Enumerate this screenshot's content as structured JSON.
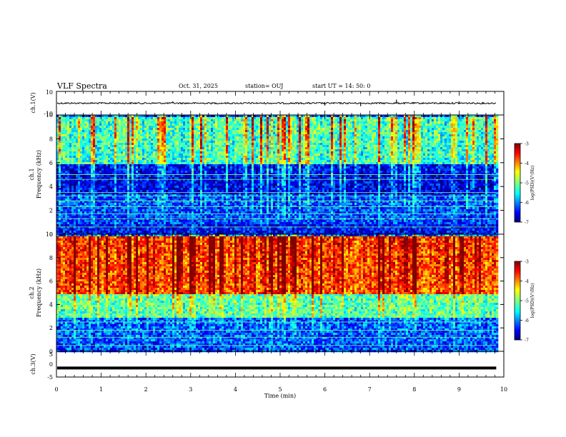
{
  "header": {
    "title": "VLF Spectra",
    "date": "Oct. 31, 2025",
    "station": "station= OUJ",
    "start": "start  UT =   14: 50: 0"
  },
  "colorbar": {
    "label": "log(PSD)(V²/Hz)",
    "ticks": [
      -3,
      -4,
      -5,
      -6,
      -7
    ],
    "range": [
      -7,
      -3
    ]
  },
  "chart_data": [
    {
      "type": "line",
      "id": "ch1-waveform",
      "ylabel": "ch.1(V)",
      "ylim": [
        -10,
        10
      ],
      "yticks": [
        10,
        -10
      ],
      "x_range_min": [
        0,
        9.83
      ],
      "baseline_value": 0,
      "spike_times_min": [
        2.6,
        6.0,
        6.8,
        7.6,
        9.0
      ],
      "spike_values": [
        1.5,
        -2.0,
        -2.5,
        3.0,
        1.5
      ]
    },
    {
      "type": "heatmap",
      "id": "ch1-spectrogram",
      "ylabel_top": "ch.1",
      "ylabel": "Frequency (kHz)",
      "ylim": [
        0,
        10
      ],
      "yticks": [
        0,
        2,
        4,
        6,
        8,
        10
      ],
      "x_range_min": [
        0,
        9.83
      ],
      "colorscale": "jet",
      "zlim": [
        -7,
        -3
      ],
      "band_levels": [
        {
          "freq_khz": [
            0,
            1.0
          ],
          "level": -6.5
        },
        {
          "freq_khz": [
            1.0,
            3.5
          ],
          "level": -6.3
        },
        {
          "freq_khz": [
            3.5,
            6.0
          ],
          "level": -6.7
        },
        {
          "freq_khz": [
            6.0,
            10.0
          ],
          "level": -5.5
        }
      ],
      "tone_lines_khz": [
        0.6,
        1.3,
        1.7,
        2.3,
        2.8,
        3.2,
        3.5,
        4.6,
        5.0
      ]
    },
    {
      "type": "heatmap",
      "id": "ch2-spectrogram",
      "ylabel_top": "ch.2",
      "ylabel": "Frequency (kHz)",
      "ylim": [
        0,
        10
      ],
      "yticks": [
        0,
        2,
        4,
        6,
        8,
        10
      ],
      "x_range_min": [
        0,
        9.83
      ],
      "colorscale": "jet",
      "zlim": [
        -7,
        -3
      ],
      "band_levels": [
        {
          "freq_khz": [
            0,
            3.0
          ],
          "level": -6.2
        },
        {
          "freq_khz": [
            3.0,
            5.0
          ],
          "level": -5.3
        },
        {
          "freq_khz": [
            5.0,
            10.0
          ],
          "level": -4.0
        }
      ],
      "tone_lines_khz": [
        0.5,
        1.2,
        1.8,
        2.5,
        3.1
      ]
    },
    {
      "type": "line",
      "id": "ch3-waveform",
      "ylabel": "ch.3(V)",
      "ylim": [
        -5,
        5
      ],
      "yticks": [
        5,
        0,
        -5
      ],
      "x_range_min": [
        0,
        9.83
      ],
      "constant_value": -1.5
    }
  ],
  "xaxis": {
    "label": "Time  (min)",
    "ticks": [
      0,
      1,
      2,
      3,
      4,
      5,
      6,
      7,
      8,
      9,
      10
    ],
    "range": [
      0,
      10
    ]
  }
}
